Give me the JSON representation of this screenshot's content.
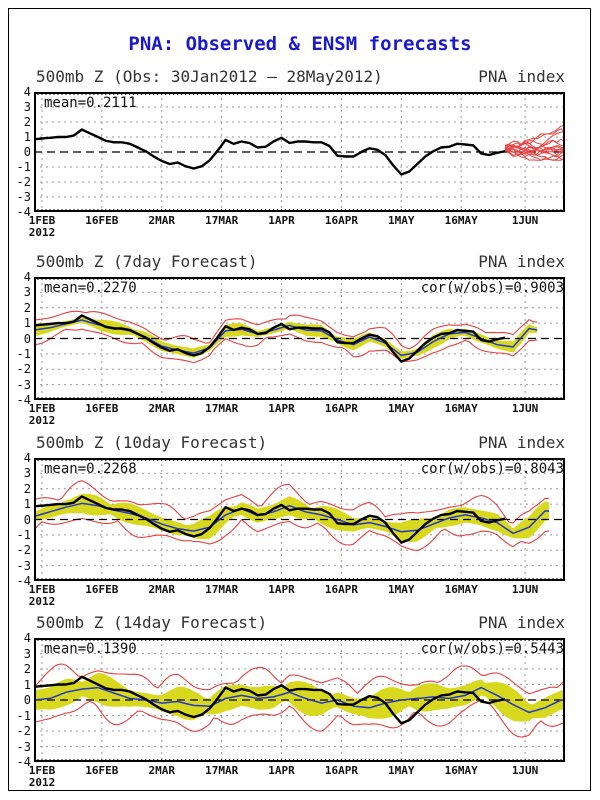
{
  "page": {
    "title": "PNA: Observed & ENSM forecasts"
  },
  "colors": {
    "title": "#1a1acc",
    "header": "#333333",
    "annotation": "#111111",
    "observed_line": "#000000",
    "ensemble_mean_line": "#2238c8",
    "spread_band": "#d8d81e",
    "envelope_line": "#e84040",
    "ensemble_member_line": "#e84545",
    "grid_line": "#999999",
    "zero_line": "#000000",
    "frame": "#000000"
  },
  "chart_data": {
    "type": "line",
    "title": "PNA: Observed & ENSM forecasts",
    "shared_axis": {
      "ylabel": "",
      "ylim": [
        -4,
        4
      ],
      "yticks": [
        4,
        3,
        2,
        1,
        0,
        -1,
        -2,
        -3,
        -4
      ],
      "x_start_date": "30Jan2012",
      "x_total_days": 133,
      "grid": true,
      "xticks": [
        {
          "day": 2,
          "label": "1FEB"
        },
        {
          "day": 17,
          "label": "16FEB"
        },
        {
          "day": 32,
          "label": "2MAR"
        },
        {
          "day": 47,
          "label": "17MAR"
        },
        {
          "day": 62,
          "label": "1APR"
        },
        {
          "day": 77,
          "label": "16APR"
        },
        {
          "day": 92,
          "label": "1MAY"
        },
        {
          "day": 107,
          "label": "16MAY"
        },
        {
          "day": 123,
          "label": "1JUN"
        }
      ],
      "year_label": "2012"
    },
    "observed": {
      "name": "Observed PNA index",
      "start_day": 0,
      "day_step": 2,
      "values": [
        0.85,
        0.9,
        0.95,
        1.0,
        1.0,
        1.1,
        1.5,
        1.25,
        1.0,
        0.75,
        0.65,
        0.65,
        0.55,
        0.3,
        0.05,
        -0.3,
        -0.6,
        -0.8,
        -0.7,
        -0.95,
        -1.1,
        -0.95,
        -0.55,
        0.1,
        0.8,
        0.55,
        0.7,
        0.6,
        0.3,
        0.35,
        0.7,
        0.95,
        0.6,
        0.7,
        0.7,
        0.65,
        0.65,
        0.4,
        -0.25,
        -0.3,
        -0.3,
        0.0,
        0.25,
        0.15,
        -0.2,
        -0.9,
        -1.5,
        -1.3,
        -0.8,
        -0.3,
        0.05,
        0.3,
        0.35,
        0.55,
        0.5,
        0.45,
        -0.1,
        -0.2,
        -0.05,
        0.05
      ]
    },
    "panels": [
      {
        "title_left": "500mb Z (Obs: 30Jan2012 – 28May2012)",
        "title_right": "PNA index",
        "mean_text": "mean=0.2111",
        "mean_value": 0.2111,
        "has_forecast_band": false,
        "ensemble_members": {
          "count": 15,
          "start_day": 118,
          "end_day": 133,
          "value_range": [
            -0.55,
            1.85
          ],
          "seed": 7
        }
      },
      {
        "title_left": "500mb Z (7day Forecast)",
        "title_right": "PNA index",
        "mean_text": "mean=0.2270",
        "cor_text": "cor(w/obs)=0.9003",
        "mean_value": 0.227,
        "cor_value": 0.9003,
        "lead_days": 7,
        "has_forecast_band": true,
        "end_day": 126,
        "phase": 1.3,
        "spread_halfwidth": 0.35,
        "envelope_halfwidth": 0.75,
        "ensemble_mean": {
          "start_day": 0,
          "day_step": 4,
          "values": [
            0.55,
            0.7,
            0.95,
            1.2,
            0.9,
            0.7,
            0.5,
            0.1,
            -0.5,
            -0.75,
            -0.95,
            -0.6,
            0.5,
            0.6,
            0.3,
            0.55,
            0.85,
            0.55,
            0.5,
            -0.1,
            -0.4,
            0.1,
            -0.3,
            -1.1,
            -0.9,
            -0.2,
            0.3,
            0.4,
            0.0,
            -0.4,
            -0.55,
            0.65,
            0.45
          ]
        }
      },
      {
        "title_left": "500mb Z (10day Forecast)",
        "title_right": "PNA index",
        "mean_text": "mean=0.2268",
        "cor_text": "cor(w/obs)=0.8043",
        "mean_value": 0.2268,
        "cor_value": 0.8043,
        "lead_days": 10,
        "has_forecast_band": true,
        "end_day": 129,
        "phase": 2.6,
        "spread_halfwidth": 0.6,
        "envelope_halfwidth": 1.15,
        "ensemble_mean": {
          "start_day": 0,
          "day_step": 4,
          "values": [
            0.2,
            0.5,
            0.8,
            1.05,
            0.9,
            0.6,
            0.4,
            0.1,
            -0.3,
            -0.6,
            -0.75,
            -0.5,
            0.3,
            0.7,
            0.25,
            0.5,
            0.9,
            0.5,
            0.3,
            0.0,
            -0.35,
            -0.2,
            -0.45,
            -0.8,
            -0.7,
            -0.3,
            0.1,
            0.3,
            0.1,
            -0.2,
            -0.9,
            -0.5,
            0.55
          ]
        }
      },
      {
        "title_left": "500mb Z (14day Forecast)",
        "title_right": "PNA index",
        "mean_text": "mean=0.1390",
        "cor_text": "cor(w/obs)=0.5443",
        "mean_value": 0.139,
        "cor_value": 0.5443,
        "lead_days": 14,
        "has_forecast_band": true,
        "end_day": 133,
        "phase": 4.1,
        "spread_halfwidth": 0.85,
        "envelope_halfwidth": 1.55,
        "ensemble_mean": {
          "start_day": 0,
          "day_step": 4,
          "values": [
            0.0,
            0.1,
            0.5,
            0.7,
            0.8,
            0.45,
            0.1,
            0.0,
            -0.2,
            -0.1,
            -0.35,
            -0.4,
            0.1,
            0.3,
            0.1,
            0.2,
            0.5,
            0.1,
            -0.2,
            0.0,
            -0.4,
            -0.5,
            -0.2,
            0.0,
            0.1,
            0.2,
            0.1,
            0.3,
            0.8,
            0.3,
            -0.3,
            -0.8,
            -0.5,
            0.0
          ]
        }
      }
    ]
  }
}
